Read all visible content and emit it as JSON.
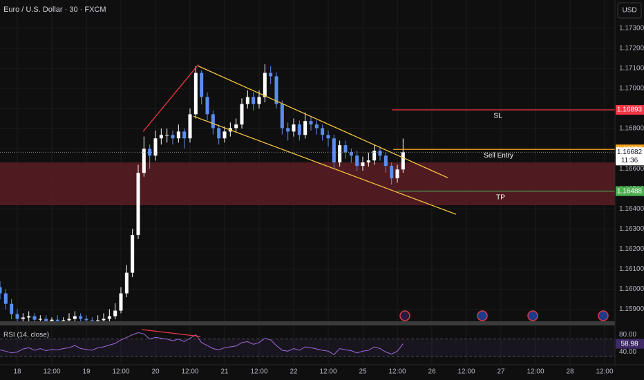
{
  "chart_data": {
    "type": "candlestick",
    "title": "Euro / U.S. Dollar · 30 · FXCM",
    "currency": "USD",
    "x": [
      -6,
      -4,
      -2,
      0,
      2,
      4,
      6,
      8,
      10,
      12,
      14,
      16,
      18,
      20,
      22,
      24,
      26,
      28,
      30,
      32,
      34,
      36,
      38,
      40,
      42,
      44,
      46,
      48,
      50,
      52,
      54,
      56,
      58,
      60,
      62,
      64,
      66,
      68,
      70,
      72,
      74,
      76,
      78,
      80,
      82,
      84,
      86,
      88,
      90,
      92,
      94,
      96,
      98,
      100,
      102,
      104,
      106,
      108,
      110,
      112,
      114,
      116,
      118,
      120,
      122,
      124,
      126,
      128,
      130,
      132,
      134
    ],
    "open": [
      1.1601,
      1.15979,
      1.15927,
      1.15876,
      1.15852,
      1.15859,
      1.15865,
      1.15848,
      1.15852,
      1.15841,
      1.15848,
      1.15841,
      1.15845,
      1.15852,
      1.15865,
      1.15852,
      1.15845,
      1.15841,
      1.15845,
      1.15852,
      1.15865,
      1.15893,
      1.15979,
      1.16082,
      1.1627,
      1.16579,
      1.16699,
      1.16665,
      1.16751,
      1.16768,
      1.16768,
      1.16751,
      1.16785,
      1.16751,
      1.16871,
      1.17077,
      1.16957,
      1.16871,
      1.16802,
      1.16751,
      1.16785,
      1.16802,
      1.1682,
      1.16922,
      1.16957,
      1.16922,
      1.16957,
      1.17077,
      1.1706,
      1.16922,
      1.16802,
      1.16785,
      1.1682,
      1.16768,
      1.16837,
      1.1682,
      1.16802,
      1.16768,
      1.16751,
      1.16631,
      1.16717,
      1.16682,
      1.16665,
      1.16614,
      1.16631,
      1.16641,
      1.16689,
      1.16665,
      1.16614,
      1.16552,
      1.16596
    ],
    "high": [
      1.1604,
      1.16,
      1.1595,
      1.159,
      1.1588,
      1.1589,
      1.1588,
      1.1587,
      1.1587,
      1.1586,
      1.1587,
      1.1586,
      1.1588,
      1.1589,
      1.1588,
      1.1587,
      1.1586,
      1.1587,
      1.1588,
      1.159,
      1.1593,
      1.1601,
      1.1612,
      1.163,
      1.1662,
      1.1676,
      1.1672,
      1.1679,
      1.168,
      1.168,
      1.1679,
      1.1682,
      1.168,
      1.169,
      1.1711,
      1.1709,
      1.1698,
      1.1689,
      1.1682,
      1.1681,
      1.1683,
      1.1685,
      1.1695,
      1.1699,
      1.1698,
      1.1699,
      1.1712,
      1.1711,
      1.1708,
      1.1694,
      1.1683,
      1.1685,
      1.1684,
      1.1688,
      1.1686,
      1.1684,
      1.1682,
      1.1679,
      1.1677,
      1.1674,
      1.1674,
      1.167,
      1.1669,
      1.1666,
      1.1668,
      1.1672,
      1.1671,
      1.1668,
      1.1663,
      1.1662,
      1.1675
    ],
    "low": [
      1.1595,
      1.159,
      1.1585,
      1.1583,
      1.1583,
      1.1584,
      1.1582,
      1.1583,
      1.1582,
      1.1582,
      1.1582,
      1.1582,
      1.1583,
      1.1584,
      1.1583,
      1.1582,
      1.1582,
      1.1582,
      1.1583,
      1.1584,
      1.1585,
      1.1588,
      1.1596,
      1.1606,
      1.1625,
      1.1656,
      1.166,
      1.1664,
      1.1672,
      1.1673,
      1.1672,
      1.1673,
      1.167,
      1.1673,
      1.1685,
      1.1692,
      1.1684,
      1.1677,
      1.1672,
      1.1673,
      1.1676,
      1.1678,
      1.168,
      1.169,
      1.1689,
      1.169,
      1.1693,
      1.1702,
      1.169,
      1.1677,
      1.1674,
      1.1676,
      1.1674,
      1.1675,
      1.1679,
      1.1677,
      1.1674,
      1.1671,
      1.166,
      1.1661,
      1.1665,
      1.1663,
      1.1659,
      1.1659,
      1.1661,
      1.1662,
      1.1664,
      1.1658,
      1.1652,
      1.1653,
      1.1658
    ],
    "close": [
      1.15979,
      1.15927,
      1.15876,
      1.15852,
      1.15859,
      1.15865,
      1.15848,
      1.15852,
      1.15841,
      1.15848,
      1.15841,
      1.15845,
      1.15852,
      1.15865,
      1.15852,
      1.15845,
      1.15841,
      1.15845,
      1.15852,
      1.15865,
      1.15893,
      1.15979,
      1.16082,
      1.1627,
      1.16579,
      1.16699,
      1.16665,
      1.16751,
      1.16768,
      1.16768,
      1.16751,
      1.16785,
      1.16751,
      1.16871,
      1.17077,
      1.16957,
      1.16871,
      1.16802,
      1.16751,
      1.16785,
      1.16802,
      1.1682,
      1.16922,
      1.16957,
      1.16922,
      1.16957,
      1.17077,
      1.1706,
      1.16922,
      1.16802,
      1.16785,
      1.1682,
      1.16768,
      1.16837,
      1.1682,
      1.16802,
      1.16768,
      1.16751,
      1.16631,
      1.16717,
      1.16682,
      1.16665,
      1.16614,
      1.16631,
      1.16641,
      1.16689,
      1.16665,
      1.16614,
      1.16552,
      1.16596,
      1.16682
    ],
    "up_color": "#ffffff",
    "down_color": "#5b8def",
    "grid": true,
    "xlim": [
      -6,
      207.6
    ],
    "xticks": [
      {
        "value": 0,
        "label": "18"
      },
      {
        "value": 12,
        "label": "12:00"
      },
      {
        "value": 24,
        "label": "19"
      },
      {
        "value": 36,
        "label": "12:00"
      },
      {
        "value": 48,
        "label": "20"
      },
      {
        "value": 60,
        "label": "12:00"
      },
      {
        "value": 72,
        "label": "21"
      },
      {
        "value": 84,
        "label": "12:00"
      },
      {
        "value": 96,
        "label": "22"
      },
      {
        "value": 108,
        "label": "12:00"
      },
      {
        "value": 120,
        "label": "25"
      },
      {
        "value": 132,
        "label": "12:00"
      },
      {
        "value": 144,
        "label": "26"
      },
      {
        "value": 156,
        "label": "12:00"
      },
      {
        "value": 168,
        "label": "27"
      },
      {
        "value": 180,
        "label": "12:00"
      },
      {
        "value": 192,
        "label": "28"
      },
      {
        "value": 204,
        "label": "12:00"
      }
    ],
    "ylim": [
      1.1584,
      1.1744
    ],
    "yticks": [
      {
        "value": 1.159,
        "label": "1.15900"
      },
      {
        "value": 1.16,
        "label": "1.16000"
      },
      {
        "value": 1.161,
        "label": "1.16100"
      },
      {
        "value": 1.162,
        "label": "1.16200"
      },
      {
        "value": 1.163,
        "label": "1.16300"
      },
      {
        "value": 1.164,
        "label": "1.16400"
      },
      {
        "value": 1.165,
        "label": "1.16500"
      },
      {
        "value": 1.166,
        "label": "1.16600"
      },
      {
        "value": 1.167,
        "label": "1.16700"
      },
      {
        "value": 1.168,
        "label": "1.16800"
      },
      {
        "value": 1.169,
        "label": "1.16900"
      },
      {
        "value": 1.17,
        "label": "1.17000"
      },
      {
        "value": 1.171,
        "label": "1.17100"
      },
      {
        "value": 1.172,
        "label": "1.17200"
      },
      {
        "value": 1.173,
        "label": "1.17300"
      }
    ],
    "zone": {
      "color": "#5c1d23",
      "range": [
        1.16418,
        1.16631
      ]
    },
    "levels": [
      {
        "name": "SL",
        "value": 1.16893,
        "color": "#f23645",
        "start": 130.1
      },
      {
        "name": "Sell Entry",
        "value": 1.16696,
        "color": "#f7a21b",
        "start": 130.6
      },
      {
        "name": "TP",
        "value": 1.16488,
        "color": "#4caf50",
        "start": 132
      }
    ],
    "current_price": {
      "value": 1.16682,
      "countdown": "11:36"
    },
    "trendlines": [
      {
        "color": "#f23645",
        "points": [
          [
            43.7,
            1.16785
          ],
          [
            62.9,
            1.17118
          ]
        ]
      },
      {
        "color": "#f5c242",
        "points": [
          [
            62.9,
            1.17111
          ],
          [
            149.5,
            1.16555
          ]
        ]
      },
      {
        "color": "#f5c242",
        "points": [
          [
            61.2,
            1.16861
          ],
          [
            152.4,
            1.16373
          ]
        ]
      }
    ],
    "indicator": {
      "type": "line",
      "title": "RSI (14, close)",
      "color": "#9c6ade",
      "ylim": [
        20,
        100
      ],
      "yticks": [
        {
          "value": 80,
          "label": "80.00"
        },
        {
          "value": 40,
          "label": "40.00"
        }
      ],
      "band": [
        30,
        70
      ],
      "values": [
        45,
        42,
        38,
        40,
        47,
        50,
        44,
        48,
        43,
        46,
        45,
        48,
        50,
        55,
        48,
        46,
        44,
        50,
        52,
        56,
        60,
        68,
        74,
        80,
        85,
        82,
        70,
        74,
        72,
        70,
        66,
        70,
        64,
        72,
        80,
        62,
        55,
        48,
        45,
        50,
        52,
        54,
        62,
        64,
        58,
        62,
        72,
        68,
        55,
        44,
        42,
        48,
        44,
        52,
        50,
        47,
        44,
        42,
        34,
        48,
        45,
        43,
        38,
        42,
        44,
        52,
        48,
        40,
        35,
        42,
        58.98
      ],
      "trendline": {
        "color": "#f23645",
        "points": [
          [
            43.2,
            92
          ],
          [
            63.6,
            76
          ]
        ]
      }
    }
  }
}
